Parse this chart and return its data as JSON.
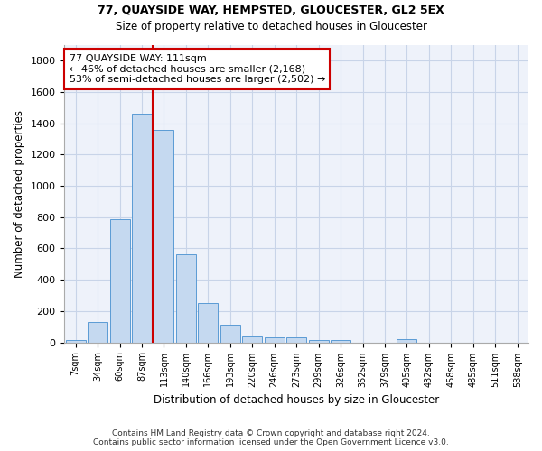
{
  "title1": "77, QUAYSIDE WAY, HEMPSTED, GLOUCESTER, GL2 5EX",
  "title2": "Size of property relative to detached houses in Gloucester",
  "xlabel": "Distribution of detached houses by size in Gloucester",
  "ylabel": "Number of detached properties",
  "footnote1": "Contains HM Land Registry data © Crown copyright and database right 2024.",
  "footnote2": "Contains public sector information licensed under the Open Government Licence v3.0.",
  "bar_labels": [
    "7sqm",
    "34sqm",
    "60sqm",
    "87sqm",
    "113sqm",
    "140sqm",
    "166sqm",
    "193sqm",
    "220sqm",
    "246sqm",
    "273sqm",
    "299sqm",
    "326sqm",
    "352sqm",
    "379sqm",
    "405sqm",
    "432sqm",
    "458sqm",
    "485sqm",
    "511sqm",
    "538sqm"
  ],
  "bar_values": [
    15,
    130,
    790,
    1460,
    1360,
    565,
    250,
    110,
    35,
    30,
    30,
    15,
    15,
    0,
    0,
    20,
    0,
    0,
    0,
    0,
    0
  ],
  "bar_color": "#c5d9f0",
  "bar_edge_color": "#5b9bd5",
  "vline_color": "#cc0000",
  "ylim": [
    0,
    1900
  ],
  "yticks": [
    0,
    200,
    400,
    600,
    800,
    1000,
    1200,
    1400,
    1600,
    1800
  ],
  "annotation_line1": "77 QUAYSIDE WAY: 111sqm",
  "annotation_line2": "← 46% of detached houses are smaller (2,168)",
  "annotation_line3": "53% of semi-detached houses are larger (2,502) →",
  "annotation_box_color": "#ffffff",
  "annotation_box_edge": "#cc0000",
  "background_color": "#ffffff",
  "plot_bg_color": "#eef2fa",
  "grid_color": "#c8d4e8"
}
